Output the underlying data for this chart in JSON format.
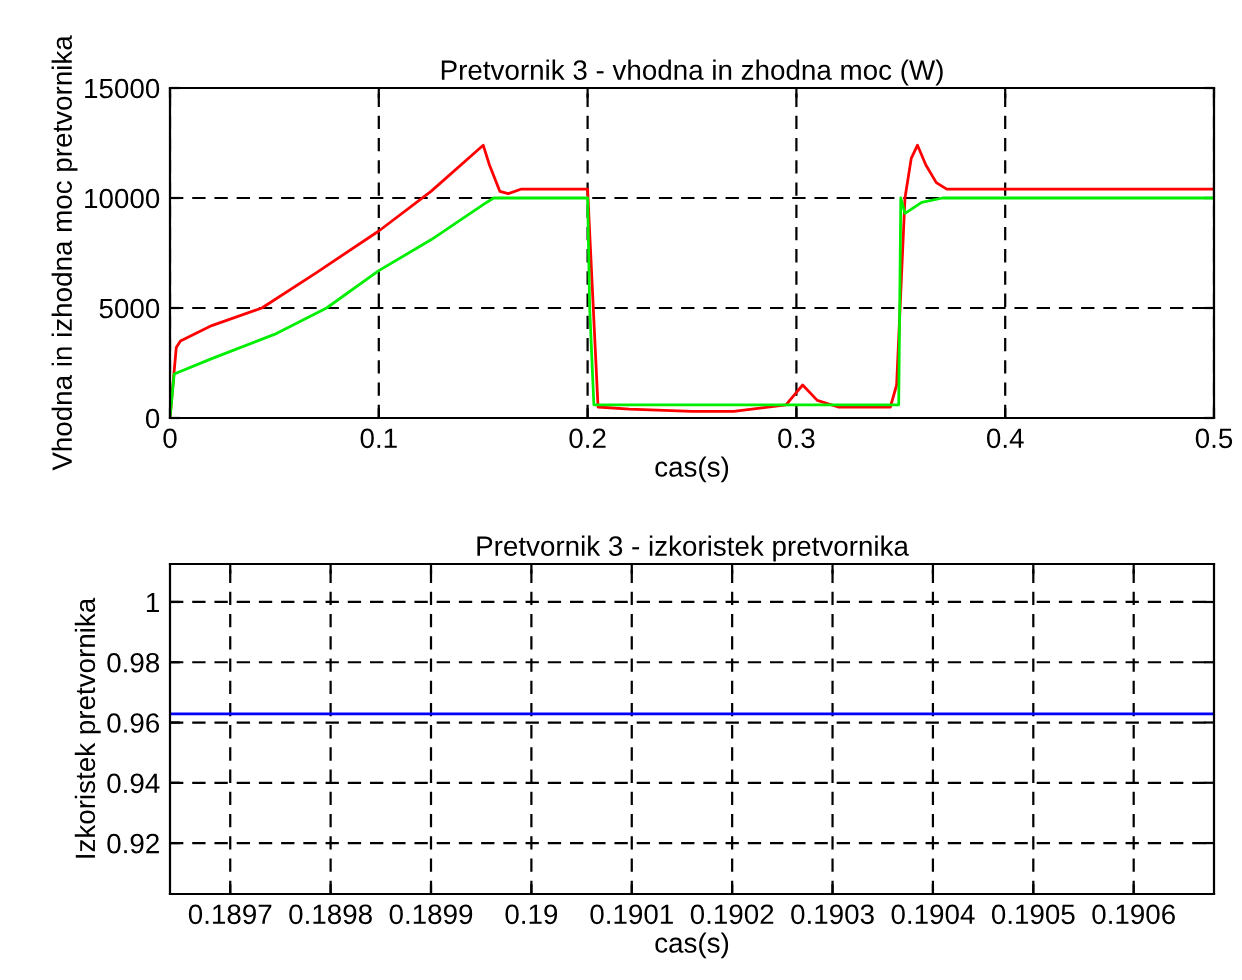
{
  "chart_data": [
    {
      "type": "line",
      "title": "Pretvornik 3 - vhodna in zhodna moc (W)",
      "xlabel": "cas(s)",
      "ylabel": "Vhodna in izhodna moc pretvornika",
      "xlim": [
        0,
        0.5
      ],
      "ylim": [
        0,
        15000
      ],
      "xticks": [
        0,
        0.1,
        0.2,
        0.3,
        0.4,
        0.5
      ],
      "yticks": [
        0,
        5000,
        10000,
        15000
      ],
      "grid": true,
      "line_style": "solid",
      "series": [
        {
          "color": "#ff0000",
          "x": [
            0,
            0.003,
            0.005,
            0.02,
            0.044,
            0.07,
            0.1,
            0.125,
            0.15,
            0.153,
            0.158,
            0.162,
            0.168,
            0.2,
            0.205,
            0.22,
            0.25,
            0.27,
            0.295,
            0.303,
            0.31,
            0.32,
            0.345,
            0.348,
            0.352,
            0.355,
            0.358,
            0.362,
            0.367,
            0.372,
            0.5
          ],
          "values": [
            0,
            3200,
            3500,
            4200,
            5000,
            6600,
            8500,
            10300,
            12400,
            11500,
            10300,
            10200,
            10400,
            10400,
            500,
            400,
            300,
            300,
            600,
            1500,
            800,
            500,
            500,
            1500,
            10000,
            11800,
            12400,
            11500,
            10700,
            10400,
            10400
          ]
        },
        {
          "color": "#00ee00",
          "x": [
            0,
            0.002,
            0.02,
            0.05,
            0.075,
            0.1,
            0.125,
            0.15,
            0.155,
            0.2,
            0.201,
            0.203,
            0.25,
            0.349,
            0.35,
            0.352,
            0.36,
            0.37,
            0.5
          ],
          "values": [
            0,
            2000,
            2700,
            3800,
            5000,
            6700,
            8100,
            9700,
            10000,
            10000,
            5000,
            600,
            600,
            600,
            10000,
            9300,
            9800,
            10000,
            10000
          ]
        }
      ]
    },
    {
      "type": "line",
      "title": "Pretvornik 3 - izkoristek pretvornika",
      "xlabel": "cas(s)",
      "ylabel": "Izkoristek pretvornika",
      "xlim": [
        0.18964,
        0.19068
      ],
      "ylim": [
        0.9031,
        1.0126
      ],
      "xticks": [
        0.1897,
        0.1898,
        0.1899,
        0.19,
        0.1901,
        0.1902,
        0.1903,
        0.1904,
        0.1905,
        0.1906
      ],
      "yticks": [
        0.92,
        0.94,
        0.96,
        0.98,
        1
      ],
      "grid": true,
      "line_style": "solid",
      "series": [
        {
          "color": "#0000ff",
          "x": [
            0.18964,
            0.19068
          ],
          "values": [
            0.9629,
            0.9629
          ]
        }
      ]
    }
  ]
}
